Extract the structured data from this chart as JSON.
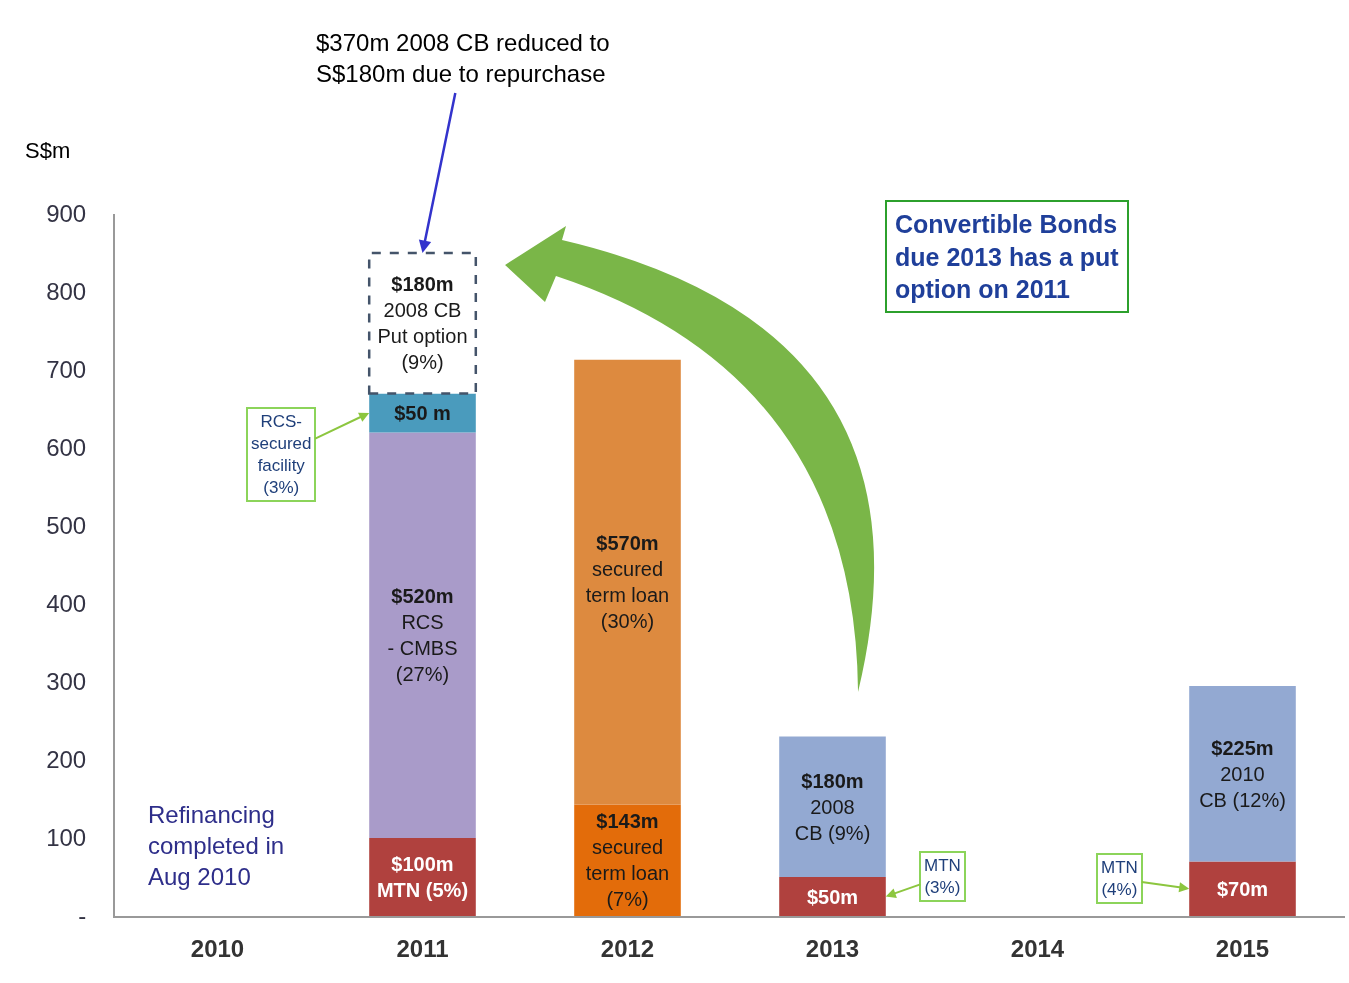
{
  "chart_data": {
    "type": "bar",
    "stacked": true,
    "ylabel": "S$m",
    "categories": [
      "2010",
      "2011",
      "2012",
      "2013",
      "2014",
      "2015"
    ],
    "series": [
      {
        "name": "MTN (5%)",
        "color": "#b0413e",
        "values": [
          null,
          100,
          null,
          null,
          null,
          null
        ],
        "value_labels": [
          null,
          "$100m",
          null,
          null,
          null,
          null
        ]
      },
      {
        "name": "secured\nterm loan\n(7%)",
        "color": "#e36c0a",
        "values": [
          null,
          null,
          143,
          null,
          null,
          null
        ],
        "value_labels": [
          null,
          null,
          "$143m",
          null,
          null,
          null
        ]
      },
      {
        "name": "MTN\n(3%)",
        "color": "#b0413e",
        "values": [
          null,
          null,
          null,
          50,
          null,
          null
        ],
        "value_labels": [
          null,
          null,
          null,
          "$50m",
          null,
          null
        ]
      },
      {
        "name": "MTN\n(4%)",
        "color": "#b0413e",
        "values": [
          null,
          null,
          null,
          null,
          null,
          70
        ],
        "value_labels": [
          null,
          null,
          null,
          null,
          null,
          "$70m"
        ]
      },
      {
        "name": "RCS\n- CMBS\n(27%)",
        "color": "#a99bc9",
        "values": [
          null,
          520,
          null,
          null,
          null,
          null
        ],
        "value_labels": [
          null,
          "$520m",
          null,
          null,
          null,
          null
        ]
      },
      {
        "name": "RCS-\nsecured\nfacility\n(3%)",
        "color": "#4a9bbd",
        "values": [
          null,
          50,
          null,
          null,
          null,
          null
        ],
        "value_labels": [
          null,
          "$50 m",
          null,
          null,
          null,
          null
        ]
      },
      {
        "name": "secured\nterm loan\n(30%)",
        "color": "#dd8a3f",
        "values": [
          null,
          null,
          570,
          null,
          null,
          null
        ],
        "value_labels": [
          null,
          null,
          "$570m",
          null,
          null,
          null
        ]
      },
      {
        "name": "2008\nCB (9%)",
        "color": "#93a9d2",
        "values": [
          null,
          null,
          null,
          180,
          null,
          null
        ],
        "value_labels": [
          null,
          null,
          null,
          "$180m",
          null,
          null
        ]
      },
      {
        "name": "2010\nCB (12%)",
        "color": "#93a9d2",
        "values": [
          null,
          null,
          null,
          null,
          null,
          225
        ],
        "value_labels": [
          null,
          null,
          null,
          null,
          null,
          "$225m"
        ]
      },
      {
        "name": "2008 CB\nPut option\n(9%)",
        "color": "#44546a",
        "line_style": "dashed",
        "values": [
          null,
          180,
          null,
          null,
          null,
          null
        ],
        "value_labels": [
          null,
          "$180m",
          null,
          null,
          null,
          null
        ]
      }
    ],
    "ylim": [
      0,
      900
    ],
    "yticks": [
      {
        "value": 0,
        "label": "-"
      },
      100,
      200,
      300,
      400,
      500,
      600,
      700,
      800,
      900
    ],
    "annotations": [
      {
        "text": "$370m 2008 CB reduced to\nS$180m due to repurchase",
        "x": "2011",
        "y": 850
      },
      "Convertible Bonds\ndue 2013 has a put\noption on 2011",
      "Refinancing\ncompleted in\nAug 2010"
    ]
  }
}
